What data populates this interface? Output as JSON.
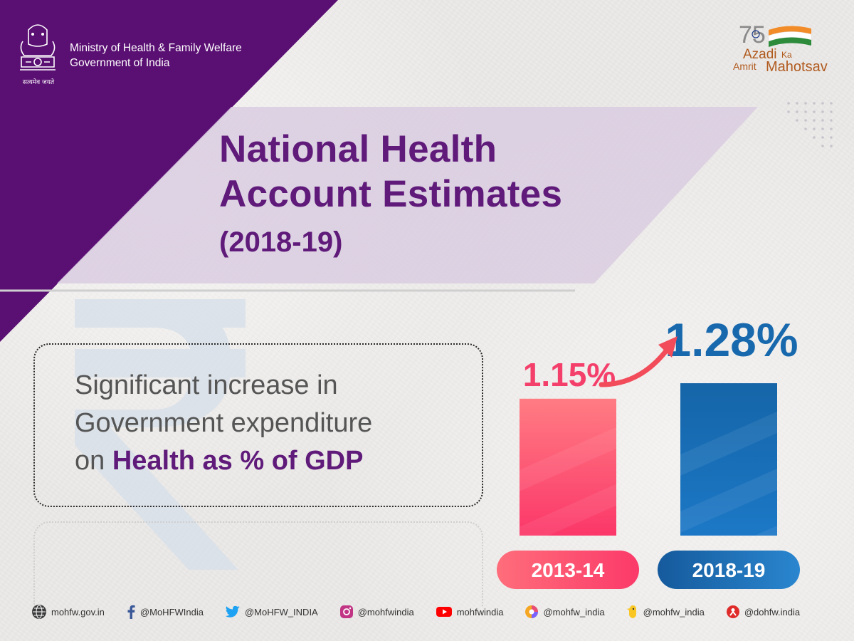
{
  "header": {
    "ministry_line1": "Ministry of Health & Family Welfare",
    "ministry_line2": "Government of India",
    "emblem_motto": "सत्यमेव जयते",
    "azadi_logo": {
      "number": "75",
      "line_azadi": "Azadi",
      "line_ka": "Ka",
      "line_amrit": "Amrit",
      "line_mahotsav": "Mahotsav"
    }
  },
  "title": {
    "line1": "National Health",
    "line2": "Account Estimates",
    "subtitle": "(2018-19)"
  },
  "description": {
    "line1": "Significant increase in",
    "line2": "Government expenditure",
    "line3_prefix": "on ",
    "line3_emphasis": "Health as % of GDP"
  },
  "chart_data": {
    "type": "bar",
    "title": "",
    "xlabel": "",
    "ylabel": "",
    "categories": [
      "2013-14",
      "2018-19"
    ],
    "values": [
      1.15,
      1.28
    ],
    "value_labels": [
      "1.15%",
      "1.28%"
    ],
    "unit": "%",
    "ylim": [
      0,
      1.4
    ],
    "grid": false,
    "legend": "none",
    "annotation": "arrow from first bar to second bar indicating increase"
  },
  "footer": {
    "links": [
      {
        "icon": "globe-icon",
        "text": "mohfw.gov.in"
      },
      {
        "icon": "facebook-icon",
        "text": "@MoHFWIndia"
      },
      {
        "icon": "twitter-icon",
        "text": "@MoHFW_INDIA"
      },
      {
        "icon": "instagram-icon",
        "text": "@mohfwindia"
      },
      {
        "icon": "youtube-icon",
        "text": "mohfwindia"
      },
      {
        "icon": "sharechat-icon",
        "text": "@mohfw_india"
      },
      {
        "icon": "koo-icon",
        "text": "@mohfw_india"
      },
      {
        "icon": "signal-icon",
        "text": "@dohfw.india"
      }
    ]
  },
  "colors": {
    "purple": "#5a0f73",
    "title_purple": "#5f1a7a",
    "bar1_pink": "#fb3f6b",
    "bar2_blue": "#1463a8",
    "value2_blue": "#1868ad",
    "value1_pink": "#f43f6a"
  }
}
